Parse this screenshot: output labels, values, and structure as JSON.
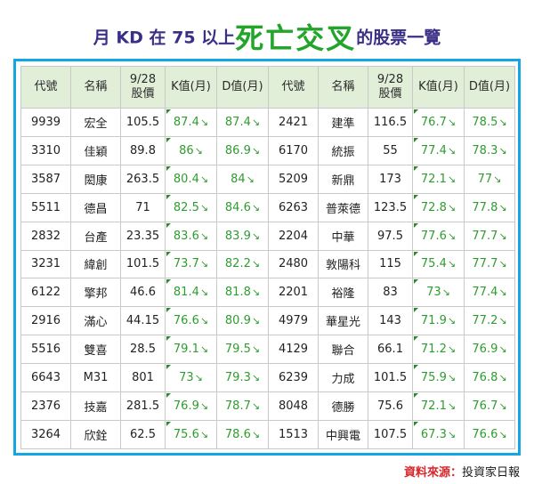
{
  "title": {
    "prefix": "月 KD 在 75 以上",
    "highlight": "死亡交叉",
    "suffix": "的股票一覽"
  },
  "headers": [
    "代號",
    "名稱",
    "9/28\n股價",
    "K值(月)",
    "D值(月)"
  ],
  "arrow": "↘",
  "rows": [
    {
      "left": {
        "code": "9939",
        "name": "宏全",
        "price": "105.5",
        "k": "87.4",
        "d": "87.4"
      },
      "right": {
        "code": "2421",
        "name": "建準",
        "price": "116.5",
        "k": "76.7",
        "d": "78.5"
      }
    },
    {
      "left": {
        "code": "3310",
        "name": "佳穎",
        "price": "89.8",
        "k": "86",
        "d": "86.9"
      },
      "right": {
        "code": "6170",
        "name": "統振",
        "price": "55",
        "k": "77.4",
        "d": "78.3"
      }
    },
    {
      "left": {
        "code": "3587",
        "name": "閎康",
        "price": "263.5",
        "k": "80.4",
        "d": "84"
      },
      "right": {
        "code": "5209",
        "name": "新鼎",
        "price": "173",
        "k": "72.1",
        "d": "77"
      }
    },
    {
      "left": {
        "code": "5511",
        "name": "德昌",
        "price": "71",
        "k": "82.5",
        "d": "84.6"
      },
      "right": {
        "code": "6263",
        "name": "普萊德",
        "price": "123.5",
        "k": "72.8",
        "d": "77.8"
      }
    },
    {
      "left": {
        "code": "2832",
        "name": "台產",
        "price": "23.35",
        "k": "83.6",
        "d": "83.9"
      },
      "right": {
        "code": "2204",
        "name": "中華",
        "price": "97.5",
        "k": "77.6",
        "d": "77.7"
      }
    },
    {
      "left": {
        "code": "3231",
        "name": "緯創",
        "price": "101.5",
        "k": "73.7",
        "d": "82.2"
      },
      "right": {
        "code": "2480",
        "name": "敦陽科",
        "price": "115",
        "k": "75.4",
        "d": "77.7"
      }
    },
    {
      "left": {
        "code": "6122",
        "name": "擎邦",
        "price": "46.6",
        "k": "81.4",
        "d": "81.8"
      },
      "right": {
        "code": "2201",
        "name": "裕隆",
        "price": "83",
        "k": "73",
        "d": "77.4"
      }
    },
    {
      "left": {
        "code": "2916",
        "name": "滿心",
        "price": "44.15",
        "k": "76.6",
        "d": "80.9"
      },
      "right": {
        "code": "4979",
        "name": "華星光",
        "price": "143",
        "k": "71.9",
        "d": "77.2"
      }
    },
    {
      "left": {
        "code": "5516",
        "name": "雙喜",
        "price": "28.5",
        "k": "79.1",
        "d": "79.5"
      },
      "right": {
        "code": "4129",
        "name": "聯合",
        "price": "66.1",
        "k": "71.2",
        "d": "76.9"
      }
    },
    {
      "left": {
        "code": "6643",
        "name": "M31",
        "price": "801",
        "k": "73",
        "d": "79.3"
      },
      "right": {
        "code": "6239",
        "name": "力成",
        "price": "101.5",
        "k": "75.9",
        "d": "76.8"
      }
    },
    {
      "left": {
        "code": "2376",
        "name": "技嘉",
        "price": "281.5",
        "k": "76.9",
        "d": "78.7"
      },
      "right": {
        "code": "8048",
        "name": "德勝",
        "price": "75.6",
        "k": "72.1",
        "d": "76.7"
      }
    },
    {
      "left": {
        "code": "3264",
        "name": "欣銓",
        "price": "62.5",
        "k": "75.6",
        "d": "78.6"
      },
      "right": {
        "code": "1513",
        "name": "中興電",
        "price": "107.5",
        "k": "67.3",
        "d": "76.6"
      }
    }
  ],
  "source": {
    "label": "資料來源：",
    "value": "投資家日報"
  }
}
